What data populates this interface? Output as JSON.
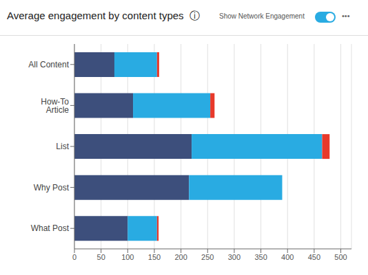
{
  "chart_data": {
    "type": "bar",
    "title": "Average engagement by content types  ⓘ",
    "annotations": [
      "Show Network Engagement",
      "•••"
    ],
    "orientation": "horizontal",
    "stacked": true,
    "grid": true,
    "categories": [
      "All Content",
      "How-To Article",
      "List",
      "Why Post",
      "What Post"
    ],
    "series": [
      {
        "color": "#3d4f7c",
        "values": [
          75,
          110,
          220,
          215,
          100
        ]
      },
      {
        "color": "#29abe2",
        "values": [
          80,
          145,
          245,
          175,
          55
        ]
      },
      {
        "color": "#e8392a",
        "values": [
          4,
          8,
          14,
          0,
          3
        ]
      }
    ],
    "xlim": [
      0,
      520
    ],
    "xticks": [
      0,
      50,
      100,
      150,
      200,
      250,
      300,
      350,
      400,
      450,
      500
    ]
  }
}
